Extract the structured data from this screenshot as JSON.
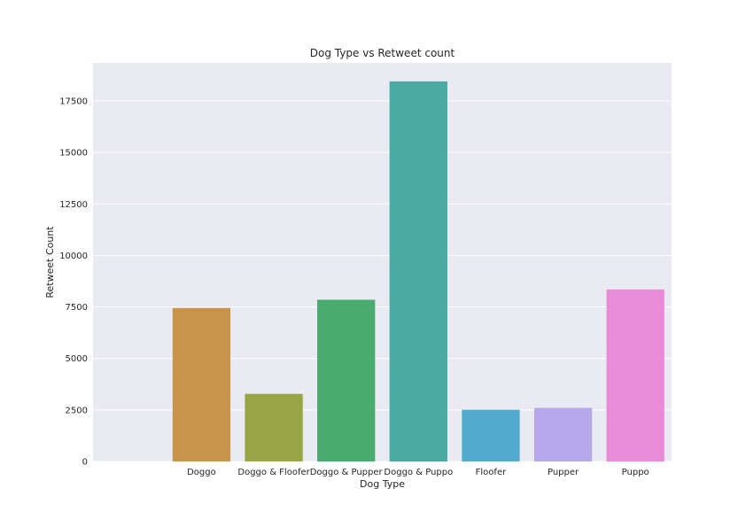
{
  "chart_data": {
    "type": "bar",
    "title": "Dog Type vs Retweet count",
    "xlabel": "Dog Type",
    "ylabel": "Retweet Count",
    "categories": [
      "",
      "Doggo",
      "Doggo & Floofer",
      "Doggo & Pupper",
      "Doggo & Puppo",
      "Floofer",
      "Pupper",
      "Puppo"
    ],
    "values": [
      0,
      7450,
      3280,
      7850,
      18450,
      2510,
      2600,
      8350
    ],
    "colors": [
      "#3274a1",
      "#c8954b",
      "#98a545",
      "#4aab6f",
      "#4aaaa4",
      "#52abcf",
      "#b6a8eb",
      "#e98bd9"
    ],
    "yticks": [
      0,
      2500,
      5000,
      7500,
      10000,
      12500,
      15000,
      17500
    ],
    "ylim": [
      0,
      19350
    ],
    "grid": true,
    "background": "#eaeaf2",
    "legend": "none"
  }
}
